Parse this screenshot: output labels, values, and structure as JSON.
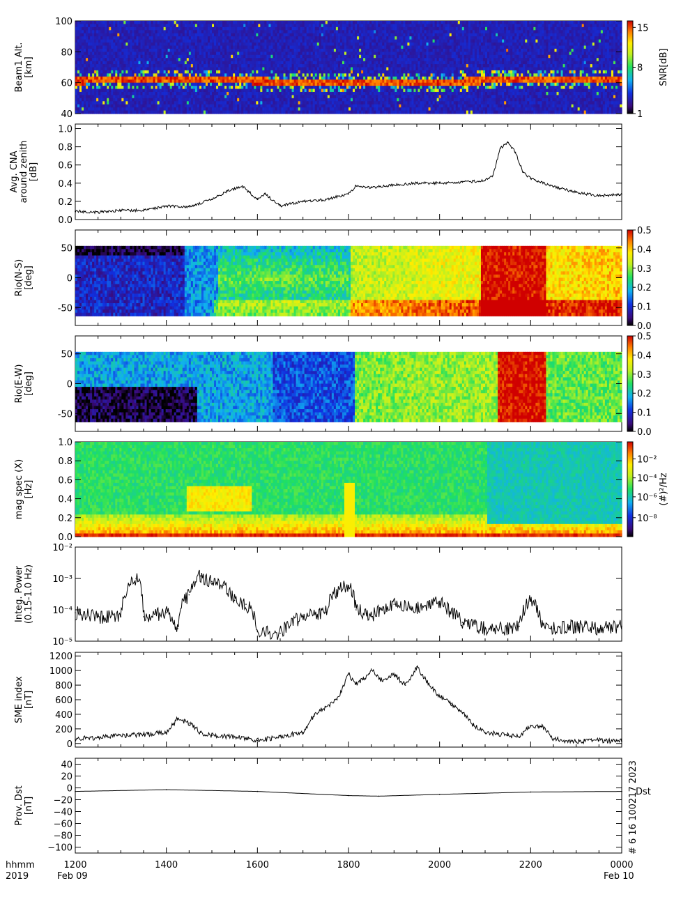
{
  "footer": {
    "time_label": "hhmm",
    "year_label": "2019",
    "start_date": "Feb 09",
    "end_date": "Feb 10",
    "x_ticks": [
      "1200",
      "1400",
      "1600",
      "1800",
      "2000",
      "2200",
      "0000"
    ],
    "credit": "# 6 16 100217 2023"
  },
  "chart_data": [
    {
      "type": "heatmap",
      "ylabel": "Beam1 Alt.[km]",
      "yticks": [
        "100",
        "80",
        "60",
        "40"
      ],
      "ylim": [
        40,
        100
      ],
      "colorbar_label": "SNR[dB]",
      "colorbar_ticks": [
        "15",
        "8",
        "1"
      ],
      "colorbar_range": [
        1,
        15
      ],
      "colormap": "rainbow",
      "background_color": "#3a2f8c"
    },
    {
      "type": "line",
      "ylabel": "Avg. CNA around zenith [dB]",
      "yticks": [
        "1.0",
        "0.8",
        "0.6",
        "0.4",
        "0.2",
        "0.0"
      ],
      "ylim": [
        0,
        1.05
      ],
      "x": [
        "12:00",
        "12:30",
        "13:00",
        "13:30",
        "14:00",
        "14:30",
        "15:00",
        "15:20",
        "15:40",
        "16:00",
        "16:10",
        "16:30",
        "17:00",
        "17:30",
        "18:00",
        "18:10",
        "18:30",
        "19:00",
        "19:30",
        "20:00",
        "20:30",
        "21:00",
        "21:10",
        "21:20",
        "21:30",
        "21:40",
        "21:50",
        "22:00",
        "22:30",
        "23:00",
        "23:30",
        "00:00"
      ],
      "values": [
        0.09,
        0.08,
        0.1,
        0.1,
        0.15,
        0.14,
        0.22,
        0.31,
        0.37,
        0.22,
        0.28,
        0.15,
        0.2,
        0.22,
        0.28,
        0.37,
        0.35,
        0.38,
        0.4,
        0.4,
        0.41,
        0.43,
        0.48,
        0.78,
        0.85,
        0.74,
        0.52,
        0.45,
        0.36,
        0.3,
        0.26,
        0.28
      ]
    },
    {
      "type": "heatmap",
      "ylabel": "Rio(N-S) [deg]",
      "yticks": [
        "50",
        "0",
        "-50"
      ],
      "ylim": [
        -80,
        80
      ],
      "colorbar_ticks": [
        "0.5",
        "0.4",
        "0.3",
        "0.2",
        "0.1",
        "0.0"
      ],
      "colorbar_range": [
        0,
        0.5
      ],
      "colormap": "rainbow"
    },
    {
      "type": "heatmap",
      "ylabel": "Rio(E-W) [deg]",
      "yticks": [
        "50",
        "0",
        "-50"
      ],
      "ylim": [
        -80,
        80
      ],
      "colorbar_ticks": [
        "0.5",
        "0.4",
        "0.3",
        "0.2",
        "0.1",
        "0.0"
      ],
      "colorbar_range": [
        0,
        0.5
      ],
      "colormap": "rainbow"
    },
    {
      "type": "heatmap",
      "ylabel": "mag spec (X) [Hz]",
      "yticks": [
        "1.0",
        "0.8",
        "0.6",
        "0.4",
        "0.2",
        "0.0"
      ],
      "ylim": [
        0,
        1.0
      ],
      "colorbar_label": "(#)²/Hz",
      "colorbar_ticks": [
        "10⁻²",
        "10⁻⁴",
        "10⁻⁶",
        "10⁻⁸"
      ],
      "colormap": "rainbow"
    },
    {
      "type": "line",
      "ylabel": "Integ. Power (0.15-1.0 Hz)",
      "yscale": "log",
      "yticks": [
        "10⁻²",
        "10⁻³",
        "10⁻⁴",
        "10⁻⁵"
      ],
      "ylim": [
        1e-05,
        0.01
      ],
      "x": [
        "12:00",
        "12:30",
        "13:00",
        "13:20",
        "13:30",
        "14:00",
        "14:15",
        "14:30",
        "14:45",
        "15:00",
        "15:15",
        "15:30",
        "15:45",
        "16:00",
        "16:30",
        "17:00",
        "17:30",
        "17:45",
        "18:00",
        "18:10",
        "18:30",
        "19:00",
        "19:30",
        "20:00",
        "20:15",
        "20:30",
        "21:00",
        "21:30",
        "21:45",
        "22:00",
        "22:15",
        "22:30",
        "23:00",
        "23:30",
        "00:00"
      ],
      "values": [
        8e-05,
        6e-05,
        6e-05,
        0.001,
        6e-05,
        8e-05,
        2.5e-05,
        0.0003,
        0.0012,
        0.0008,
        0.0006,
        0.0002,
        0.00015,
        2e-05,
        1.8e-05,
        6e-05,
        8e-05,
        0.0004,
        0.0006,
        0.0001,
        6e-05,
        0.00015,
        0.00012,
        0.00018,
        8e-05,
        4e-05,
        2.5e-05,
        2.5e-05,
        3e-05,
        0.0002,
        3e-05,
        2.5e-05,
        3e-05,
        2.5e-05,
        3e-05
      ]
    },
    {
      "type": "line",
      "ylabel": "SME index [nT]",
      "yticks": [
        "1200",
        "1000",
        "800",
        "600",
        "400",
        "200",
        "0"
      ],
      "ylim": [
        -50,
        1250
      ],
      "x": [
        "12:00",
        "12:30",
        "13:00",
        "13:30",
        "14:00",
        "14:15",
        "14:30",
        "14:45",
        "15:00",
        "15:30",
        "16:00",
        "16:30",
        "17:00",
        "17:15",
        "17:30",
        "17:45",
        "18:00",
        "18:10",
        "18:20",
        "18:30",
        "18:45",
        "19:00",
        "19:15",
        "19:30",
        "19:45",
        "20:00",
        "20:15",
        "20:30",
        "20:45",
        "21:00",
        "21:30",
        "21:45",
        "22:00",
        "22:15",
        "22:30",
        "23:00",
        "23:30",
        "00:00"
      ],
      "values": [
        60,
        80,
        110,
        120,
        150,
        340,
        280,
        150,
        110,
        90,
        40,
        90,
        150,
        400,
        500,
        600,
        950,
        820,
        880,
        1020,
        850,
        950,
        800,
        1050,
        820,
        650,
        550,
        420,
        250,
        150,
        110,
        90,
        250,
        230,
        60,
        30,
        40,
        30
      ]
    },
    {
      "type": "line",
      "ylabel": "Prov. Dst [nT]",
      "legend": "Dst",
      "yticks": [
        "40",
        "20",
        "0",
        "−20",
        "−40",
        "−60",
        "−80",
        "−100"
      ],
      "ylim": [
        -110,
        50
      ],
      "x": [
        "12:00",
        "14:00",
        "16:00",
        "18:00",
        "18:40",
        "20:00",
        "22:00",
        "00:00"
      ],
      "values": [
        -6,
        -3,
        -6,
        -13,
        -14,
        -11,
        -7,
        -6
      ]
    }
  ]
}
